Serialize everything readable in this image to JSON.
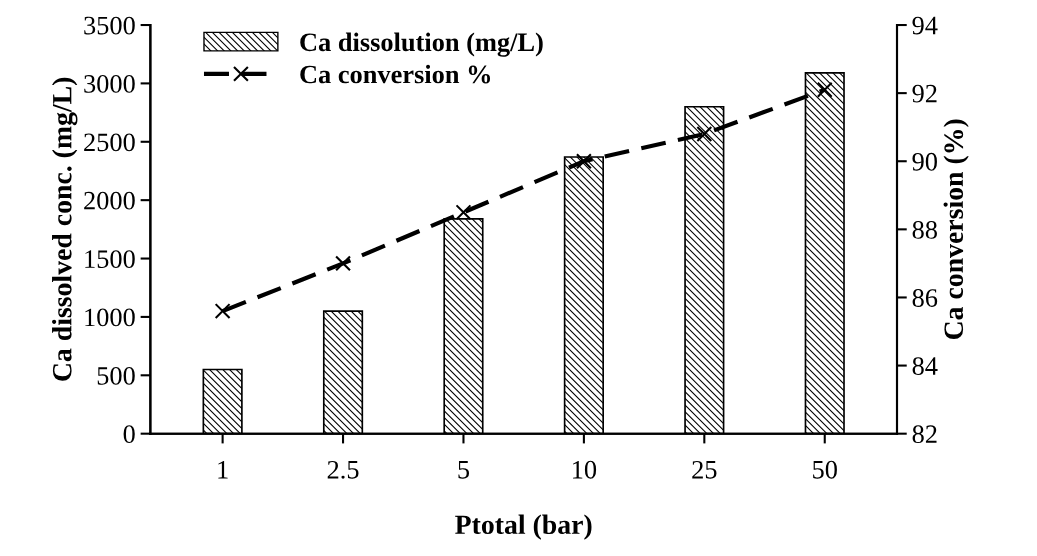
{
  "chart_data": {
    "type": "bar",
    "xlabel": "Ptotal (bar)",
    "ylabel": "Ca dissolved conc. (mg/L)",
    "y2label": "Ca conversion (%)",
    "categories": [
      "1",
      "2.5",
      "5",
      "10",
      "25",
      "50"
    ],
    "series": [
      {
        "name": "Ca dissolution (mg/L)",
        "color": "#000000",
        "values": [
          550,
          1050,
          1840,
          2370,
          2800,
          3090
        ]
      },
      {
        "name": "Ca conversion %",
        "type": "line",
        "axis": "y2",
        "color": "#000000",
        "marker": "cross",
        "line_style": "dashed",
        "values": [
          85.6,
          87.0,
          88.5,
          90.0,
          90.8,
          92.1
        ]
      }
    ],
    "ylim": [
      0,
      3500
    ],
    "yticks": [
      0,
      500,
      1000,
      1500,
      2000,
      2500,
      3000,
      3500
    ],
    "y2lim": [
      82,
      94
    ],
    "y2ticks": [
      82,
      84,
      86,
      88,
      90,
      92,
      94
    ],
    "legend": "top left",
    "grid": false
  }
}
